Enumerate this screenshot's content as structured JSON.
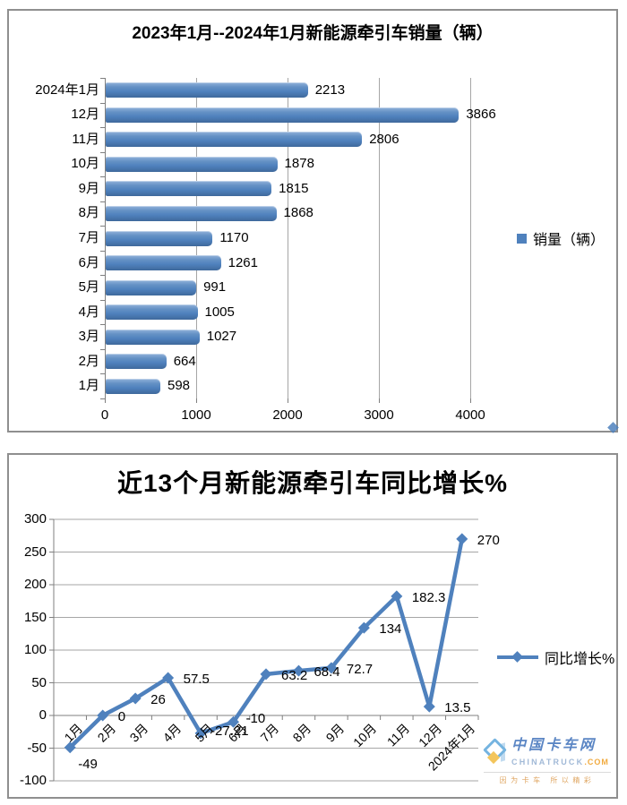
{
  "panel1": {
    "title": "2023年1月--2024年1月新能源牵引车销量（辆）",
    "legend_label": "销量（辆）"
  },
  "panel2": {
    "title": "近13个月新能源牵引车同比增长%",
    "legend_label": "同比增长%"
  },
  "watermark": {
    "name_cn": "中国卡车网",
    "name_en": "CHINATRUCK",
    "suffix": ".COM",
    "slogan": "因为卡车 所以精彩"
  },
  "chart_data": [
    {
      "type": "bar",
      "orientation": "horizontal",
      "title": "2023年1月--2024年1月新能源牵引车销量（辆）",
      "categories": [
        "2024年1月",
        "12月",
        "11月",
        "10月",
        "9月",
        "8月",
        "7月",
        "6月",
        "5月",
        "4月",
        "3月",
        "2月",
        "1月"
      ],
      "values": [
        2213,
        3866,
        2806,
        1878,
        1815,
        1868,
        1170,
        1261,
        991,
        1005,
        1027,
        664,
        598
      ],
      "xlabel": "",
      "ylabel": "",
      "xlim": [
        0,
        4000
      ],
      "xticks": [
        0,
        1000,
        2000,
        3000,
        4000
      ],
      "legend": [
        "销量（辆）"
      ],
      "legend_position": "right",
      "bar_color": "#4F81BD",
      "grid": true
    },
    {
      "type": "line",
      "title": "近13个月新能源牵引车同比增长%",
      "categories": [
        "1月",
        "2月",
        "3月",
        "4月",
        "5月",
        "6月",
        "7月",
        "8月",
        "9月",
        "10月",
        "11月",
        "12月",
        "2024年1月"
      ],
      "values": [
        -49,
        0,
        26,
        57.5,
        -27.21,
        -10,
        63.2,
        68.4,
        72.7,
        134,
        182.3,
        13.5,
        270
      ],
      "xlabel": "",
      "ylabel": "",
      "ylim": [
        -100,
        300
      ],
      "yticks": [
        300,
        250,
        200,
        150,
        100,
        50,
        0,
        -50,
        -100
      ],
      "legend": [
        "同比增长%"
      ],
      "legend_position": "right",
      "line_color": "#4F81BD",
      "marker": "diamond",
      "grid": true
    }
  ]
}
